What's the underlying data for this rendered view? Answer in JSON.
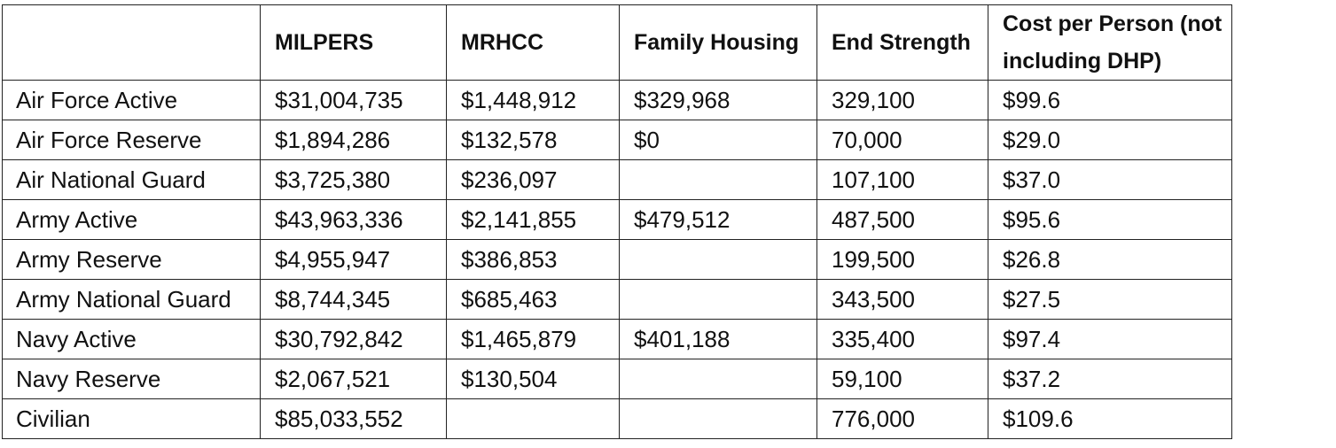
{
  "table": {
    "headers": [
      "",
      "MILPERS",
      "MRHCC",
      "Family Housing",
      "End Strength",
      "Cost per Person (not including DHP)"
    ],
    "rows": [
      [
        "Air Force Active",
        "$31,004,735",
        "$1,448,912",
        "$329,968",
        "329,100",
        "$99.6"
      ],
      [
        "Air Force Reserve",
        "$1,894,286",
        "$132,578",
        "$0",
        "70,000",
        "$29.0"
      ],
      [
        "Air National Guard",
        "$3,725,380",
        "$236,097",
        "",
        "107,100",
        "$37.0"
      ],
      [
        "Army Active",
        "$43,963,336",
        "$2,141,855",
        "$479,512",
        "487,500",
        "$95.6"
      ],
      [
        "Army Reserve",
        "$4,955,947",
        "$386,853",
        "",
        "199,500",
        "$26.8"
      ],
      [
        "Army National Guard",
        "$8,744,345",
        "$685,463",
        "",
        "343,500",
        "$27.5"
      ],
      [
        "Navy Active",
        "$30,792,842",
        "$1,465,879",
        "$401,188",
        "335,400",
        "$97.4"
      ],
      [
        "Navy Reserve",
        "$2,067,521",
        "$130,504",
        "",
        "59,100",
        "$37.2"
      ],
      [
        "Civilian",
        "$85,033,552",
        "",
        "",
        "776,000",
        "$109.6"
      ]
    ]
  }
}
